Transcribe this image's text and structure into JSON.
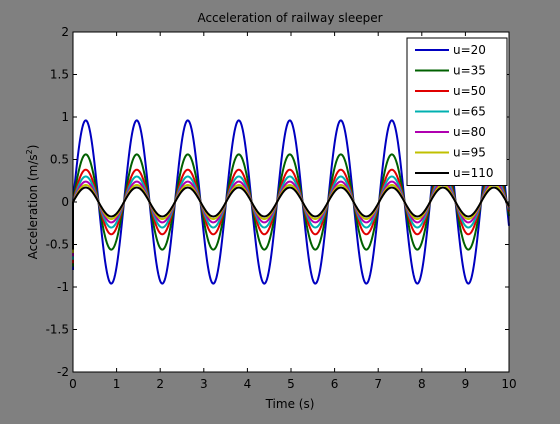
{
  "chart_data": {
    "type": "line",
    "title": "Acceleration of railway sleeper",
    "xlabel": "Time (s)",
    "ylabel_main": "Acceleration (m/s",
    "ylabel_sup": "2",
    "ylabel_close": ")",
    "xlim": [
      0,
      10
    ],
    "ylim": [
      -2,
      2
    ],
    "xticks": [
      "0",
      "1",
      "2",
      "3",
      "4",
      "5",
      "6",
      "7",
      "8",
      "9",
      "10"
    ],
    "yticks": [
      "-2",
      "-1.5",
      "-1",
      "-0.5",
      "0",
      "0.5",
      "1",
      "1.5",
      "2"
    ],
    "grid": false,
    "legend_position": "top-right",
    "period_s": 1.17,
    "initial_spike": -0.8,
    "series": [
      {
        "name": "u=20",
        "amplitude": 0.96,
        "color": "#0000c0"
      },
      {
        "name": "u=35",
        "amplitude": 0.56,
        "color": "#006000"
      },
      {
        "name": "u=50",
        "amplitude": 0.38,
        "color": "#e00000"
      },
      {
        "name": "u=65",
        "amplitude": 0.3,
        "color": "#00b0b0"
      },
      {
        "name": "u=80",
        "amplitude": 0.24,
        "color": "#b000b0"
      },
      {
        "name": "u=95",
        "amplitude": 0.2,
        "color": "#c0c000"
      },
      {
        "name": "u=110",
        "amplitude": 0.17,
        "color": "#000000"
      }
    ]
  }
}
